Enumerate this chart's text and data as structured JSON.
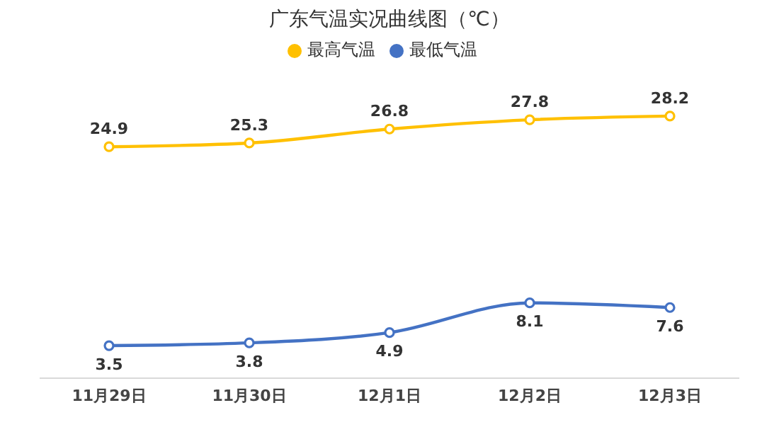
{
  "chart_data": {
    "type": "line",
    "title": "广东气温实况曲线图（℃）",
    "categories": [
      "11月29日",
      "11月30日",
      "12月1日",
      "12月2日",
      "12月3日"
    ],
    "series": [
      {
        "name": "最高气温",
        "color": "#ffc000",
        "values": [
          24.9,
          25.3,
          26.8,
          27.8,
          28.2
        ]
      },
      {
        "name": "最低气温",
        "color": "#4472c4",
        "values": [
          3.5,
          3.8,
          4.9,
          8.1,
          7.6
        ]
      }
    ],
    "tick_labels": "x",
    "data_labels": true,
    "grid": false,
    "legend": "top",
    "marker": "circle",
    "line_style": "solid"
  }
}
